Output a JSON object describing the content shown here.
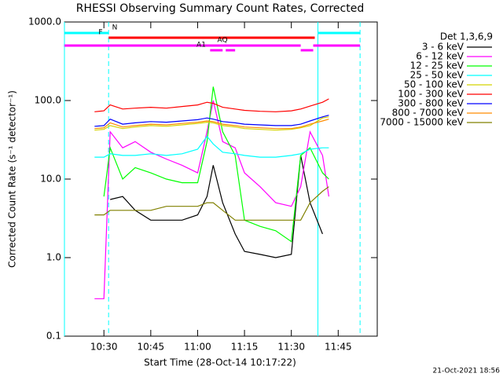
{
  "chart_data": {
    "type": "line",
    "title": "RHESSI Observing Summary Count Rates, Corrected",
    "xlabel": "Start Time (28-Oct-14 10:17:22)",
    "ylabel": "Corrected Count Rate (s⁻¹ detector⁻¹)",
    "footer": "21-Oct-2021 18:56",
    "legend_title": "Det 1,3,6,9",
    "log_y": true,
    "xlim": [
      "10:17:22",
      "11:57:30"
    ],
    "xticks": [
      "10:30",
      "10:45",
      "11:00",
      "11:15",
      "11:30",
      "11:45"
    ],
    "ylim": [
      0.1,
      1000
    ],
    "yticks": [
      0.1,
      {
        "value": 1,
        "label": "1.0"
      },
      {
        "value": 10,
        "label": "10.0"
      },
      {
        "value": 100,
        "label": "100.0"
      },
      {
        "value": 1000,
        "label": "1000.0"
      }
    ],
    "x": [
      "10:27",
      "10:30",
      "10:32",
      "10:36",
      "10:40",
      "10:45",
      "10:50",
      "10:55",
      "11:00",
      "11:03",
      "11:05",
      "11:08",
      "11:12",
      "11:15",
      "11:20",
      "11:25",
      "11:30",
      "11:33",
      "11:36",
      "11:40",
      "11:42"
    ],
    "series": [
      {
        "name": "3 - 6 keV",
        "color": "#000000",
        "values": [
          null,
          null,
          5.5,
          6,
          4,
          3,
          3,
          3,
          3.5,
          6,
          15,
          5,
          2,
          1.2,
          1.1,
          1,
          1.1,
          20,
          5,
          2,
          null
        ]
      },
      {
        "name": "6 - 12 keV",
        "color": "#ff00ff",
        "values": [
          0.3,
          0.3,
          40,
          25,
          30,
          22,
          18,
          15,
          12,
          40,
          100,
          30,
          25,
          12,
          8,
          5,
          4.5,
          8,
          40,
          20,
          6
        ]
      },
      {
        "name": "12 - 25 keV",
        "color": "#00ff00",
        "values": [
          null,
          6,
          25,
          10,
          14,
          12,
          10,
          9,
          9,
          30,
          150,
          40,
          20,
          3,
          2.5,
          2.2,
          1.6,
          20,
          25,
          12,
          10
        ]
      },
      {
        "name": "25 - 50 keV",
        "color": "#00ffff",
        "values": [
          19,
          19,
          21,
          20,
          20,
          21,
          20,
          21,
          24,
          35,
          28,
          22,
          21,
          20,
          19,
          19,
          20,
          21,
          24,
          25,
          25
        ]
      },
      {
        "name": "50 - 100 keV",
        "color": "#d4d400",
        "values": [
          42,
          43,
          48,
          44,
          46,
          48,
          47,
          49,
          51,
          53,
          52,
          48,
          46,
          44,
          43,
          42,
          43,
          45,
          48,
          60,
          62
        ]
      },
      {
        "name": "100 - 300 keV",
        "color": "#ff0000",
        "values": [
          72,
          74,
          88,
          78,
          80,
          82,
          80,
          84,
          88,
          95,
          92,
          82,
          78,
          75,
          73,
          72,
          74,
          78,
          85,
          95,
          105
        ]
      },
      {
        "name": "300 - 800 keV",
        "color": "#0000ff",
        "values": [
          47,
          48,
          58,
          50,
          52,
          54,
          53,
          55,
          57,
          60,
          58,
          54,
          52,
          50,
          49,
          48,
          48,
          50,
          55,
          62,
          65
        ]
      },
      {
        "name": "800 - 7000 keV",
        "color": "#ff8c00",
        "values": [
          44,
          45,
          52,
          46,
          48,
          50,
          49,
          51,
          53,
          55,
          54,
          50,
          48,
          46,
          45,
          44,
          44,
          46,
          50,
          55,
          58
        ]
      },
      {
        "name": "7000 - 15000 keV",
        "color": "#808000",
        "values": [
          3.5,
          3.5,
          4,
          4,
          4,
          4,
          4.5,
          4.5,
          4.5,
          5,
          5,
          4,
          3,
          3,
          3,
          3,
          3,
          3,
          5,
          7,
          8
        ]
      }
    ],
    "flags": [
      {
        "label": "N",
        "color": "#00ffff",
        "segments": [
          [
            "10:17:22",
            "10:31:30"
          ],
          [
            "11:38:30",
            "11:52:00"
          ]
        ]
      },
      {
        "label": "F",
        "color": "#ff0000",
        "segments": [
          [
            "10:31:30",
            "11:37:30"
          ]
        ]
      },
      {
        "label": "AQ",
        "color": "#ff00ff",
        "segments": [
          [
            "10:17:22",
            "11:33:00"
          ],
          [
            "11:37:00",
            "11:52:00"
          ]
        ]
      },
      {
        "label": "A1",
        "color": "#ff00ff",
        "segments": [
          [
            "11:04:00",
            "11:08:00"
          ],
          [
            "11:09:00",
            "11:12:00"
          ],
          [
            "11:33:00",
            "11:37:00"
          ]
        ]
      }
    ],
    "vlines": [
      {
        "x": "10:17:22",
        "color": "#00ffff",
        "dashed": false
      },
      {
        "x": "10:31:30",
        "color": "#00ffff",
        "dashed": true
      },
      {
        "x": "11:38:30",
        "color": "#00ffff",
        "dashed": false
      },
      {
        "x": "11:52:00",
        "color": "#00ffff",
        "dashed": true
      }
    ]
  }
}
